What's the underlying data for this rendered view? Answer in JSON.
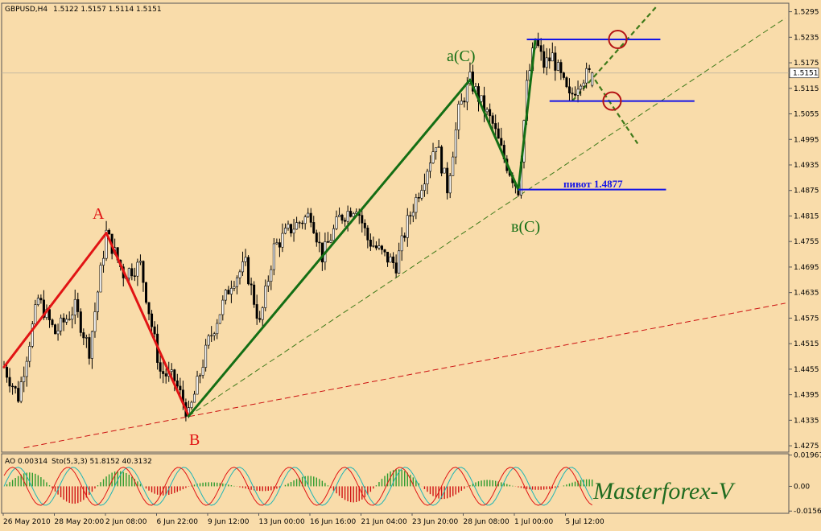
{
  "header": {
    "symbol": "GBPUSD,H4",
    "ohlc": "1.5122 1.5157 1.5114 1.5151"
  },
  "colors": {
    "background": "#f9dcaa",
    "frame": "#555555",
    "bull_wave": "#146e14",
    "bear_wave": "#e11414",
    "level_line": "#1414e6",
    "trend_dashed_green": "#3f7a1a",
    "trend_dashed_red": "#cc1111",
    "target_circle": "#b41414",
    "candles": "#000000",
    "ao_positive": "#2e9b2e",
    "ao_negative": "#d01414",
    "stoch_main": "#e01414",
    "stoch_signal": "#1fb5b5",
    "watermark": "#1f6b1f"
  },
  "wave_labels": {
    "a": "A",
    "b": "B",
    "aC": "a(C)",
    "bC": "в(C)"
  },
  "pivot_label": "пивот 1.4877",
  "current_price": "1.5151",
  "indicator_header": {
    "ao": "AO 0.00314",
    "stoch": "Sto(5,3,3) 51.8152 40.3132"
  },
  "watermark": "Masterforex-V",
  "chart_data": {
    "type": "candlestick",
    "symbol": "GBPUSD",
    "timeframe": "H4",
    "ylim": [
      1.426,
      1.5315
    ],
    "y_ticks": [
      "1.5295",
      "1.5235",
      "1.5175",
      "1.5115",
      "1.5055",
      "1.4995",
      "1.4935",
      "1.4875",
      "1.4815",
      "1.4755",
      "1.4695",
      "1.4635",
      "1.4575",
      "1.4515",
      "1.4455",
      "1.4395",
      "1.4335",
      "1.4275"
    ],
    "x_ticks": [
      "26 May 2010",
      "28 May 20:00",
      "2 Jun 08:00",
      "6 Jun 22:00",
      "9 Jun 12:00",
      "13 Jun 00:00",
      "16 Jun 16:00",
      "21 Jun 04:00",
      "23 Jun 20:00",
      "28 Jun 08:00",
      "1 Jul 00:00",
      "5 Jul 12:00"
    ],
    "bar_count": 208,
    "last_bar": {
      "open": 1.5122,
      "high": 1.5157,
      "low": 1.5114,
      "close": 1.5151
    },
    "waves": [
      {
        "name": "A",
        "kind": "bear",
        "from_bar": 0,
        "from_price": 1.446,
        "to_bar": 36,
        "to_price": 1.4775
      },
      {
        "name": "A-B",
        "kind": "bear",
        "from_bar": 36,
        "from_price": 1.4775,
        "to_bar": 65,
        "to_price": 1.4345
      },
      {
        "name": "B-a(C)",
        "kind": "bull",
        "from_bar": 65,
        "from_price": 1.4345,
        "to_bar": 164,
        "to_price": 1.5135
      },
      {
        "name": "a(C)-в(C)",
        "kind": "bull",
        "from_bar": 164,
        "from_price": 1.5135,
        "to_bar": 181,
        "to_price": 1.4877
      },
      {
        "name": "в(C)-top",
        "kind": "bull",
        "from_bar": 181,
        "from_price": 1.4877,
        "to_bar": 187,
        "to_price": 1.523
      }
    ],
    "horizontal_levels": [
      {
        "price": 1.523,
        "from_bar": 184,
        "to_bar": 231
      },
      {
        "price": 1.5085,
        "from_bar": 192,
        "to_bar": 243
      },
      {
        "price": 1.4877,
        "from_bar": 181,
        "to_bar": 233
      }
    ],
    "trend_lines": [
      {
        "style": "green-dashed",
        "from_bar": 65,
        "from_price": 1.4345,
        "to_bar": 275,
        "to_price": 1.528
      },
      {
        "style": "red-dashed",
        "from_bar": 7,
        "from_price": 1.427,
        "to_bar": 275,
        "to_price": 1.461
      },
      {
        "style": "green-dotted",
        "from_bar": 200,
        "from_price": 1.5085,
        "to_bar": 230,
        "to_price": 1.531
      },
      {
        "style": "green-dotted",
        "from_bar": 208,
        "from_price": 1.5135,
        "to_bar": 223,
        "to_price": 1.4985
      }
    ],
    "target_circles": [
      {
        "bar": 216,
        "price": 1.523
      },
      {
        "bar": 214,
        "price": 1.5085
      }
    ],
    "indicator": {
      "ao_value": 0.00314,
      "stoch_main": 51.8152,
      "stoch_signal": 40.3132,
      "ylim": [
        -0.017,
        0.0205
      ],
      "y_ticks": [
        "0.01967",
        "0.00",
        "-0.0156"
      ]
    }
  }
}
